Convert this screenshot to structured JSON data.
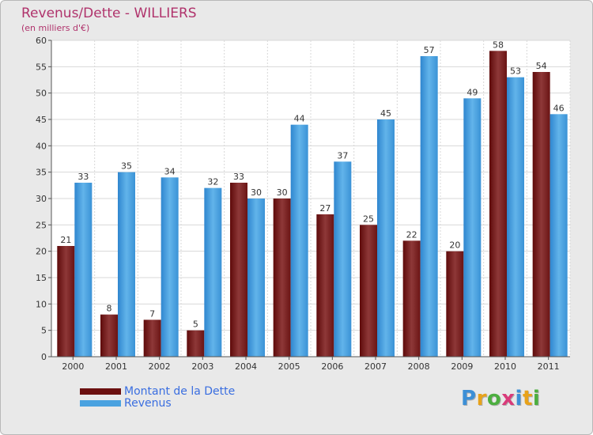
{
  "colors": {
    "debt": "#7a1a1a",
    "debt_light": "#8c3a3a",
    "revenue": "#3d97d8",
    "revenue_light": "#5aaee6",
    "title": "#b0336c",
    "legend_text": "#3a6ee0",
    "grid": "#d8d8d8",
    "axis": "#555555"
  },
  "legend": {
    "items": [
      {
        "label": "Montant de la Dette",
        "color": "#6b0f0f"
      },
      {
        "label": "Revenus",
        "color": "#4aa2e0"
      }
    ]
  },
  "logo": {
    "text": "Proxiti",
    "letters": [
      {
        "ch": "P",
        "color": "#3d8fd6"
      },
      {
        "ch": "r",
        "color": "#e8a21a"
      },
      {
        "ch": "o",
        "color": "#4cae3f"
      },
      {
        "ch": "x",
        "color": "#d93b7a"
      },
      {
        "ch": "i",
        "color": "#3d8fd6"
      },
      {
        "ch": "t",
        "color": "#e8a21a"
      },
      {
        "ch": "i",
        "color": "#4cae3f"
      }
    ]
  },
  "chart_data": {
    "type": "bar",
    "title": "Revenus/Dette - WILLIERS",
    "subtitle": "(en milliers d'€)",
    "xlabel": "",
    "ylabel": "",
    "ylim": [
      0,
      60
    ],
    "yticks": [
      0,
      5,
      10,
      15,
      20,
      25,
      30,
      35,
      40,
      45,
      50,
      55,
      60
    ],
    "categories": [
      "2000",
      "2001",
      "2002",
      "2003",
      "2004",
      "2005",
      "2006",
      "2007",
      "2008",
      "2009",
      "2010",
      "2011"
    ],
    "series": [
      {
        "name": "Montant de la Dette",
        "values": [
          21,
          8,
          7,
          5,
          33,
          30,
          27,
          25,
          22,
          20,
          58,
          54
        ]
      },
      {
        "name": "Revenus",
        "values": [
          33,
          35,
          34,
          32,
          30,
          44,
          37,
          45,
          57,
          49,
          53,
          46
        ]
      }
    ],
    "grid": true,
    "legend_position": "bottom-left"
  }
}
